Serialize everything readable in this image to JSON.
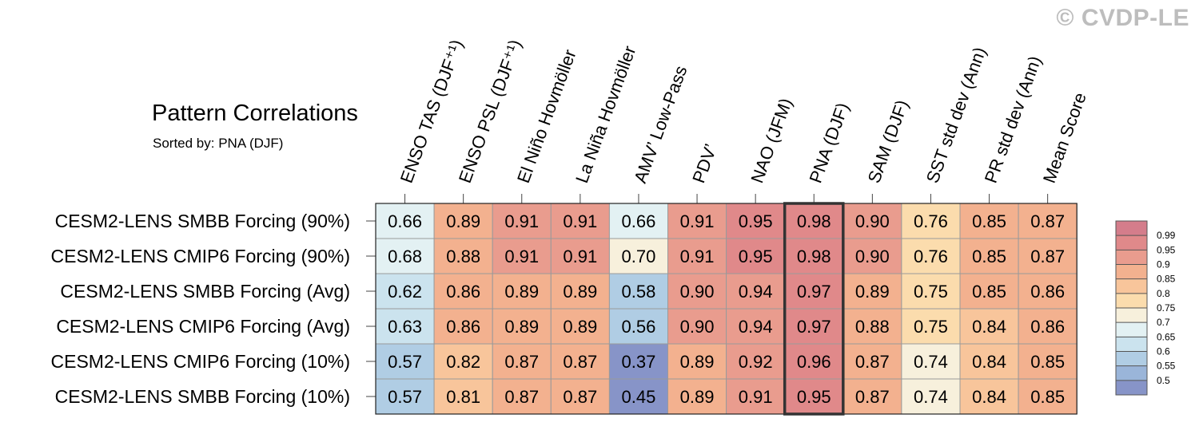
{
  "watermark": "© CVDP-LE",
  "title": "Pattern Correlations",
  "subtitle": "Sorted by: PNA (DJF)",
  "chart_data": {
    "type": "heatmap",
    "title": "Pattern Correlations",
    "subtitle": "Sorted by: PNA (DJF)",
    "columns": [
      "ENSO TAS (DJF⁺¹)",
      "ENSO PSL (DJF⁺¹)",
      "El Niño Hovmöller",
      "La Niña Hovmöller",
      "AMV’ Low-Pass",
      "PDV’",
      "NAO (JFM)",
      "PNA (DJF)",
      "SAM (DJF)",
      "SST std dev (Ann)",
      "PR std dev (Ann)",
      "Mean Score"
    ],
    "rows": [
      "CESM2-LENS SMBB Forcing (90%)",
      "CESM2-LENS CMIP6 Forcing (90%)",
      "CESM2-LENS SMBB Forcing (Avg)",
      "CESM2-LENS CMIP6 Forcing (Avg)",
      "CESM2-LENS CMIP6 Forcing (10%)",
      "CESM2-LENS SMBB Forcing (10%)"
    ],
    "values": [
      [
        "0.66",
        "0.89",
        "0.91",
        "0.91",
        "0.66",
        "0.91",
        "0.95",
        "0.98",
        "0.90",
        "0.76",
        "0.85",
        "0.87"
      ],
      [
        "0.68",
        "0.88",
        "0.91",
        "0.91",
        "0.70",
        "0.91",
        "0.95",
        "0.98",
        "0.90",
        "0.76",
        "0.85",
        "0.87"
      ],
      [
        "0.62",
        "0.86",
        "0.89",
        "0.89",
        "0.58",
        "0.90",
        "0.94",
        "0.97",
        "0.89",
        "0.75",
        "0.85",
        "0.86"
      ],
      [
        "0.63",
        "0.86",
        "0.89",
        "0.89",
        "0.56",
        "0.90",
        "0.94",
        "0.97",
        "0.88",
        "0.75",
        "0.84",
        "0.86"
      ],
      [
        "0.57",
        "0.82",
        "0.87",
        "0.87",
        "0.37",
        "0.89",
        "0.92",
        "0.96",
        "0.87",
        "0.74",
        "0.84",
        "0.85"
      ],
      [
        "0.57",
        "0.81",
        "0.87",
        "0.87",
        "0.45",
        "0.89",
        "0.91",
        "0.95",
        "0.87",
        "0.74",
        "0.84",
        "0.85"
      ]
    ],
    "highlighted_column": "PNA (DJF)",
    "colorbar": {
      "labels": [
        "0.99",
        "0.95",
        "0.9",
        "0.85",
        "0.8",
        "0.75",
        "0.7",
        "0.65",
        "0.6",
        "0.55",
        "0.5"
      ],
      "colors": [
        "#d47d8b",
        "#e0898a",
        "#e99c8e",
        "#f3b18f",
        "#f8c59b",
        "#fbdcad",
        "#f7f0dc",
        "#e3f1f3",
        "#cbe3ee",
        "#b0cde4",
        "#9ab5d9",
        "#8794c8"
      ],
      "orientation": "vertical",
      "placement": "right"
    }
  }
}
